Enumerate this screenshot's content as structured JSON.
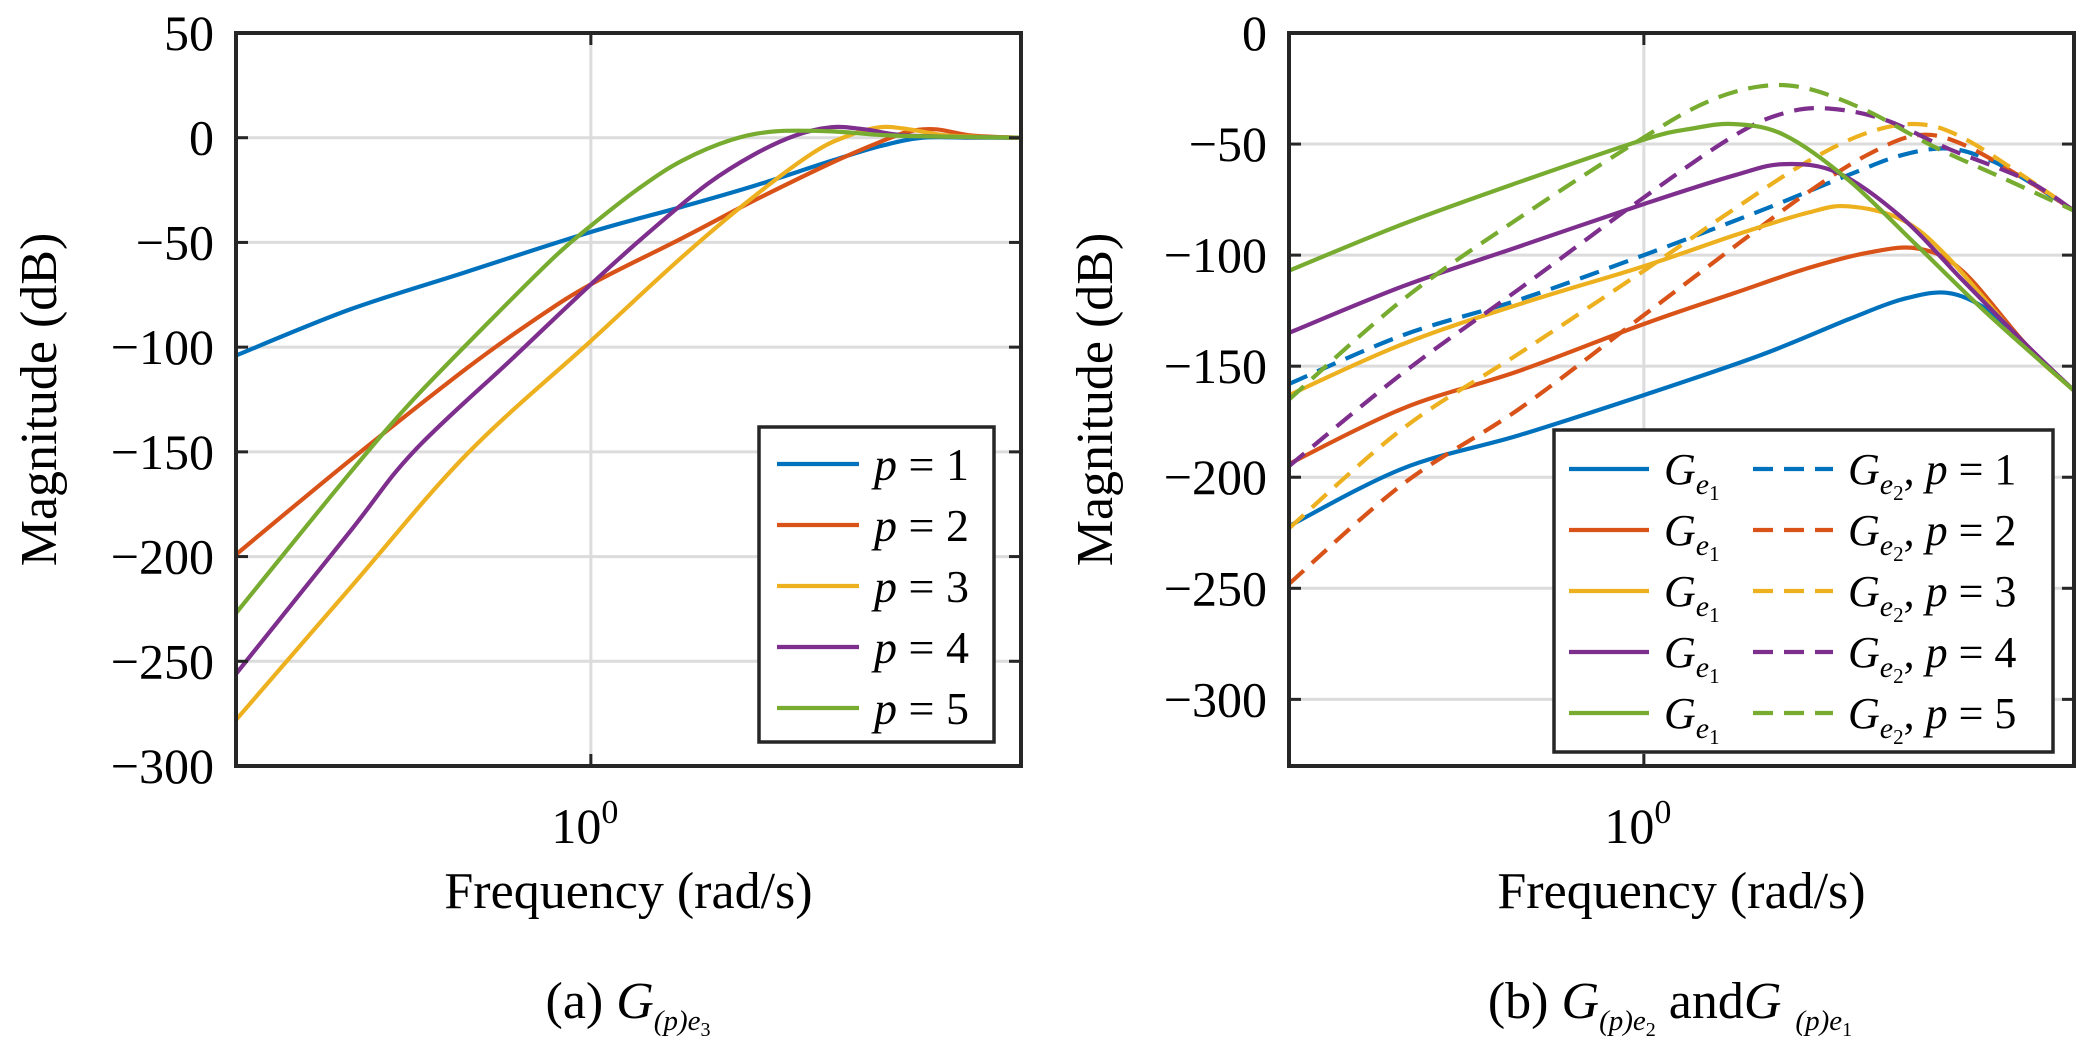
{
  "figure": {
    "colors": [
      "#0072BD",
      "#D95319",
      "#EDB120",
      "#7E2F8E",
      "#77AC30"
    ]
  },
  "chart_data": [
    {
      "type": "line",
      "panel": "a",
      "xscale": "log",
      "xlabel": "Frequency (rad/s)",
      "ylabel": "Magnitude (dB)",
      "xlim": [
        0.36,
        3.45
      ],
      "ylim": [
        -300,
        50
      ],
      "yticks": [
        50,
        0,
        -50,
        -100,
        -150,
        -200,
        -250,
        -300
      ],
      "ytick_labels": [
        "50",
        "0",
        "−50",
        "−100",
        "−150",
        "−200",
        "−250",
        "−300"
      ],
      "xticks": [
        1
      ],
      "xtick_base": "10",
      "xtick_exp": "0",
      "grid": true,
      "legend_position": "bottom-right",
      "caption": {
        "prefix": "(a) ",
        "sym": "G",
        "sub_paren": "(p)",
        "sub_e": "e",
        "sub_idx": "3"
      },
      "series": [
        {
          "name": "p = 1",
          "name_var": "p",
          "name_rest": " = 1",
          "style": "solid",
          "x": [
            0.36,
            0.5,
            0.7,
            1.0,
            1.3,
            1.6,
            2.0,
            2.3,
            2.6,
            3.0,
            3.45
          ],
          "y": [
            -104,
            -82,
            -64,
            -45,
            -33,
            -23,
            -11,
            -4,
            0,
            0,
            0
          ]
        },
        {
          "name": "p = 2",
          "name_var": "p",
          "name_rest": " = 2",
          "style": "solid",
          "x": [
            0.36,
            0.5,
            0.7,
            0.85,
            1.0,
            1.3,
            1.6,
            2.0,
            2.3,
            2.5,
            2.7,
            3.0,
            3.45
          ],
          "y": [
            -199,
            -154,
            -110,
            -87,
            -70,
            -48,
            -30,
            -12,
            -2,
            3,
            4,
            1,
            0
          ]
        },
        {
          "name": "p = 3",
          "name_var": "p",
          "name_rest": " = 3",
          "style": "solid",
          "x": [
            0.36,
            0.5,
            0.7,
            1.0,
            1.3,
            1.6,
            1.9,
            2.1,
            2.3,
            2.5,
            2.8,
            3.45
          ],
          "y": [
            -278,
            -215,
            -151,
            -97,
            -57,
            -28,
            -7,
            1,
            5,
            4,
            1,
            0
          ]
        },
        {
          "name": "p = 4",
          "name_var": "p",
          "name_rest": " = 4",
          "style": "solid",
          "x": [
            0.36,
            0.5,
            0.6,
            0.8,
            1.0,
            1.2,
            1.4,
            1.6,
            1.8,
            2.0,
            2.2,
            2.5,
            3.45
          ],
          "y": [
            -256,
            -188,
            -150,
            -105,
            -70,
            -43,
            -22,
            -8,
            1,
            5,
            4,
            1,
            0
          ]
        },
        {
          "name": "p = 5",
          "name_var": "p",
          "name_rest": " = 5",
          "style": "solid",
          "x": [
            0.36,
            0.5,
            0.6,
            0.75,
            0.9,
            1.0,
            1.15,
            1.3,
            1.5,
            1.7,
            2.0,
            2.4,
            3.45
          ],
          "y": [
            -227,
            -160,
            -125,
            -87,
            -57,
            -42,
            -24,
            -11,
            -1,
            3,
            3,
            1,
            0
          ]
        }
      ]
    },
    {
      "type": "line",
      "panel": "b",
      "xscale": "log",
      "xlabel": "Frequency (rad/s)",
      "ylabel": "Magnitude (dB)",
      "xlim": [
        0.36,
        3.45
      ],
      "ylim": [
        -330,
        0
      ],
      "yticks": [
        0,
        -50,
        -100,
        -150,
        -200,
        -250,
        -300
      ],
      "ytick_labels": [
        "0",
        "−50",
        "−100",
        "−150",
        "−200",
        "−250",
        "−300"
      ],
      "xticks": [
        1
      ],
      "xtick_base": "10",
      "xtick_exp": "0",
      "grid": true,
      "legend_position": "bottom-right",
      "caption": {
        "prefix": "(b) ",
        "sym": "G",
        "sub_paren": "(p)",
        "sub_e": "e",
        "sub_idx": "2",
        "mid": " and",
        "sym2": "G",
        "sub2_paren": "(p)",
        "sub2_e": "e",
        "sub2_idx": "1"
      },
      "series": [
        {
          "name": "Ge1",
          "label_sym": "G",
          "label_sub": "e",
          "label_idx": "1",
          "label_rest": "",
          "style": "solid",
          "color_index": 0,
          "x": [
            0.36,
            0.5,
            0.7,
            1.0,
            1.4,
            1.8,
            2.1,
            2.4,
            2.7,
            3.0,
            3.45
          ],
          "y": [
            -222,
            -196,
            -181,
            -163,
            -145,
            -129,
            -120,
            -117,
            -125,
            -141,
            -161
          ]
        },
        {
          "name": "Ge2, p = 1",
          "label_sym": "G",
          "label_sub": "e",
          "label_idx": "2",
          "label_rest": ", p = 1",
          "style": "dashed",
          "color_index": 0,
          "x": [
            0.36,
            0.5,
            0.7,
            1.0,
            1.4,
            1.8,
            2.1,
            2.4,
            2.7,
            3.0,
            3.45
          ],
          "y": [
            -158,
            -136,
            -120,
            -100,
            -80,
            -64,
            -55,
            -52,
            -57,
            -66,
            -80
          ]
        },
        {
          "name": "Ge1",
          "label_sym": "G",
          "label_sub": "e",
          "label_idx": "1",
          "label_rest": "",
          "style": "solid",
          "color_index": 1,
          "x": [
            0.36,
            0.5,
            0.7,
            1.0,
            1.3,
            1.6,
            1.9,
            2.2,
            2.5,
            3.0,
            3.45
          ],
          "y": [
            -194,
            -169,
            -152,
            -131,
            -117,
            -106,
            -99,
            -97,
            -107,
            -140,
            -161
          ]
        },
        {
          "name": "Ge2, p = 2",
          "label_sym": "G",
          "label_sub": "e",
          "label_idx": "2",
          "label_rest": ", p = 2",
          "style": "dashed",
          "color_index": 1,
          "x": [
            0.36,
            0.5,
            0.7,
            1.0,
            1.3,
            1.6,
            1.9,
            2.2,
            2.5,
            3.0,
            3.45
          ],
          "y": [
            -248,
            -203,
            -169,
            -127,
            -96,
            -72,
            -55,
            -46,
            -50,
            -66,
            -80
          ]
        },
        {
          "name": "Ge1",
          "label_sym": "G",
          "label_sub": "e",
          "label_idx": "1",
          "label_rest": "",
          "style": "solid",
          "color_index": 2,
          "x": [
            0.36,
            0.5,
            0.7,
            1.0,
            1.3,
            1.6,
            1.8,
            2.1,
            2.4,
            3.0,
            3.45
          ],
          "y": [
            -163,
            -140,
            -122,
            -105,
            -91,
            -81,
            -78,
            -84,
            -101,
            -141,
            -161
          ]
        },
        {
          "name": "Ge2, p = 3",
          "label_sym": "G",
          "label_sub": "e",
          "label_idx": "2",
          "label_rest": ", p = 3",
          "style": "dashed",
          "color_index": 2,
          "x": [
            0.36,
            0.5,
            0.7,
            1.0,
            1.3,
            1.6,
            1.9,
            2.2,
            2.5,
            3.0,
            3.45
          ],
          "y": [
            -223,
            -178,
            -144,
            -107,
            -79,
            -58,
            -45,
            -41,
            -47,
            -65,
            -80
          ]
        },
        {
          "name": "Ge1",
          "label_sym": "G",
          "label_sub": "e",
          "label_idx": "1",
          "label_rest": "",
          "style": "solid",
          "color_index": 3,
          "x": [
            0.36,
            0.5,
            0.7,
            1.0,
            1.3,
            1.5,
            1.75,
            2.1,
            2.5,
            3.0,
            3.45
          ],
          "y": [
            -135,
            -114,
            -96,
            -77,
            -64,
            -59,
            -63,
            -83,
            -111,
            -140,
            -161
          ]
        },
        {
          "name": "Ge2, p = 4",
          "label_sym": "G",
          "label_sub": "e",
          "label_idx": "2",
          "label_rest": ", p = 4",
          "style": "dashed",
          "color_index": 3,
          "x": [
            0.36,
            0.5,
            0.7,
            1.0,
            1.3,
            1.5,
            1.7,
            2.0,
            2.4,
            3.0,
            3.45
          ],
          "y": [
            -195,
            -153,
            -115,
            -74,
            -46,
            -36,
            -34,
            -39,
            -52,
            -66,
            -80
          ]
        },
        {
          "name": "Ge1",
          "label_sym": "G",
          "label_sub": "e",
          "label_idx": "1",
          "label_rest": "",
          "style": "solid",
          "color_index": 4,
          "x": [
            0.36,
            0.5,
            0.7,
            1.0,
            1.15,
            1.3,
            1.5,
            1.8,
            2.2,
            2.7,
            3.45
          ],
          "y": [
            -107,
            -86,
            -67,
            -48,
            -43,
            -41,
            -46,
            -66,
            -96,
            -127,
            -161
          ]
        },
        {
          "name": "Ge2, p = 5",
          "label_sym": "G",
          "label_sub": "e",
          "label_idx": "2",
          "label_rest": ", p = 5",
          "style": "dashed",
          "color_index": 4,
          "x": [
            0.36,
            0.5,
            0.7,
            1.0,
            1.2,
            1.4,
            1.6,
            1.9,
            2.3,
            2.8,
            3.45
          ],
          "y": [
            -165,
            -120,
            -83,
            -47,
            -31,
            -24,
            -25,
            -35,
            -51,
            -65,
            -80
          ]
        }
      ]
    }
  ]
}
